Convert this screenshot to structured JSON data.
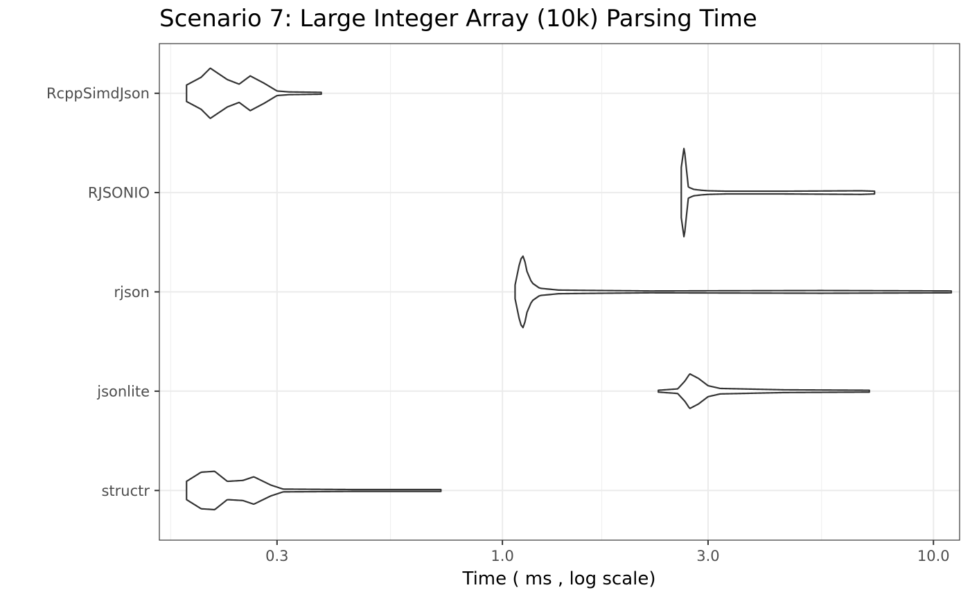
{
  "chart_data": {
    "type": "violin",
    "title": "Scenario 7: Large Integer Array (10k) Parsing Time",
    "xlabel": "Time ( ms , log scale)",
    "ylabel": "",
    "x_scale": "log10",
    "xlim": [
      0.16,
      11.5
    ],
    "x_ticks": [
      0.3,
      1.0,
      3.0,
      10.0
    ],
    "x_tick_labels": [
      "0.3",
      "1.0",
      "3.0",
      "10.0"
    ],
    "x_minor_ticks": [
      0.17,
      0.55,
      1.7,
      5.5
    ],
    "grid": true,
    "theme": "bw",
    "line_color": "#333333",
    "categories": [
      "RcppSimdJson",
      "RJSONIO",
      "rjson",
      "jsonlite",
      "structr"
    ],
    "series": [
      {
        "name": "RcppSimdJson",
        "min": 0.185,
        "max": 0.38,
        "density": [
          [
            0.185,
            0.18
          ],
          [
            0.2,
            0.35
          ],
          [
            0.21,
            0.55
          ],
          [
            0.23,
            0.3
          ],
          [
            0.245,
            0.2
          ],
          [
            0.26,
            0.38
          ],
          [
            0.28,
            0.22
          ],
          [
            0.3,
            0.05
          ],
          [
            0.32,
            0.03
          ],
          [
            0.38,
            0.02
          ]
        ]
      },
      {
        "name": "RJSONIO",
        "min": 2.6,
        "max": 7.3,
        "density": [
          [
            2.6,
            0.55
          ],
          [
            2.64,
            1.0
          ],
          [
            2.67,
            0.55
          ],
          [
            2.7,
            0.12
          ],
          [
            2.78,
            0.07
          ],
          [
            2.9,
            0.05
          ],
          [
            3.0,
            0.04
          ],
          [
            3.3,
            0.03
          ],
          [
            4.5,
            0.03
          ],
          [
            6.8,
            0.04
          ],
          [
            7.3,
            0.03
          ]
        ]
      },
      {
        "name": "rjson",
        "min": 1.07,
        "max": 11.0,
        "density": [
          [
            1.07,
            0.15
          ],
          [
            1.1,
            0.7
          ],
          [
            1.12,
            0.8
          ],
          [
            1.14,
            0.45
          ],
          [
            1.17,
            0.2
          ],
          [
            1.22,
            0.08
          ],
          [
            1.35,
            0.04
          ],
          [
            1.7,
            0.03
          ],
          [
            2.2,
            0.02
          ],
          [
            5.5,
            0.03
          ],
          [
            11.0,
            0.02
          ]
        ]
      },
      {
        "name": "jsonlite",
        "min": 2.3,
        "max": 7.1,
        "density": [
          [
            2.3,
            0.02
          ],
          [
            2.55,
            0.05
          ],
          [
            2.65,
            0.22
          ],
          [
            2.72,
            0.38
          ],
          [
            2.85,
            0.28
          ],
          [
            3.0,
            0.12
          ],
          [
            3.2,
            0.06
          ],
          [
            4.5,
            0.03
          ],
          [
            7.1,
            0.02
          ]
        ]
      },
      {
        "name": "structr",
        "min": 0.185,
        "max": 0.72,
        "density": [
          [
            0.185,
            0.2
          ],
          [
            0.2,
            0.4
          ],
          [
            0.215,
            0.42
          ],
          [
            0.23,
            0.2
          ],
          [
            0.25,
            0.22
          ],
          [
            0.265,
            0.3
          ],
          [
            0.29,
            0.12
          ],
          [
            0.31,
            0.03
          ],
          [
            0.45,
            0.02
          ],
          [
            0.72,
            0.02
          ]
        ]
      }
    ]
  }
}
